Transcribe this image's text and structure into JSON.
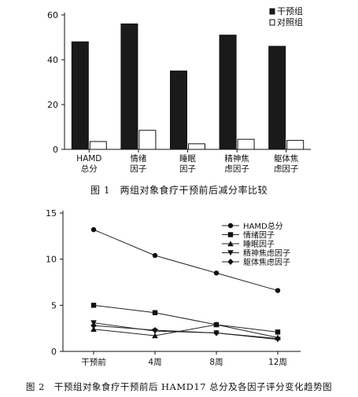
{
  "chart_data": [
    {
      "type": "bar",
      "title": "",
      "caption": "图 1　两组对象食疗干预前后减分率比较",
      "categories": [
        "HAMD\n总分",
        "情绪\n因子",
        "睡眠\n因子",
        "精神焦\n虑因子",
        "躯体焦\n虑因子"
      ],
      "series": [
        {
          "name": "干预组",
          "values": [
            48,
            56,
            35,
            51,
            46
          ],
          "color": "#1a1a1a"
        },
        {
          "name": "对照组",
          "values": [
            3.5,
            8.5,
            2.5,
            4.5,
            4.0
          ],
          "color": "#ffffff"
        }
      ],
      "ylim": [
        0,
        60
      ],
      "yticks": [
        0,
        20,
        40,
        60
      ],
      "xlabel": "",
      "ylabel": "",
      "legend": "top-right",
      "grid": false
    },
    {
      "type": "line",
      "title": "",
      "caption": "图 2　干预组对象食疗干预前后 HAMD17 总分及各因子评分变化趋势图",
      "categories": [
        "干预前",
        "4周",
        "8周",
        "12周"
      ],
      "series": [
        {
          "name": "HAMD总分",
          "marker": "circle",
          "values": [
            13.2,
            10.4,
            8.5,
            6.6
          ]
        },
        {
          "name": "情绪因子",
          "marker": "square",
          "values": [
            5.0,
            4.2,
            2.9,
            2.1
          ]
        },
        {
          "name": "睡眠因子",
          "marker": "triangle-up",
          "values": [
            2.4,
            1.7,
            2.9,
            1.5
          ]
        },
        {
          "name": "精神焦虑因子",
          "marker": "triangle-down",
          "values": [
            3.1,
            2.2,
            2.0,
            1.3
          ]
        },
        {
          "name": "躯体焦虑因子",
          "marker": "diamond",
          "values": [
            2.8,
            2.3,
            2.0,
            1.4
          ]
        }
      ],
      "ylim": [
        0,
        15
      ],
      "yticks": [
        0,
        5,
        10,
        15
      ],
      "xlabel": "",
      "ylabel": "",
      "legend": "top-right",
      "grid": false
    }
  ]
}
